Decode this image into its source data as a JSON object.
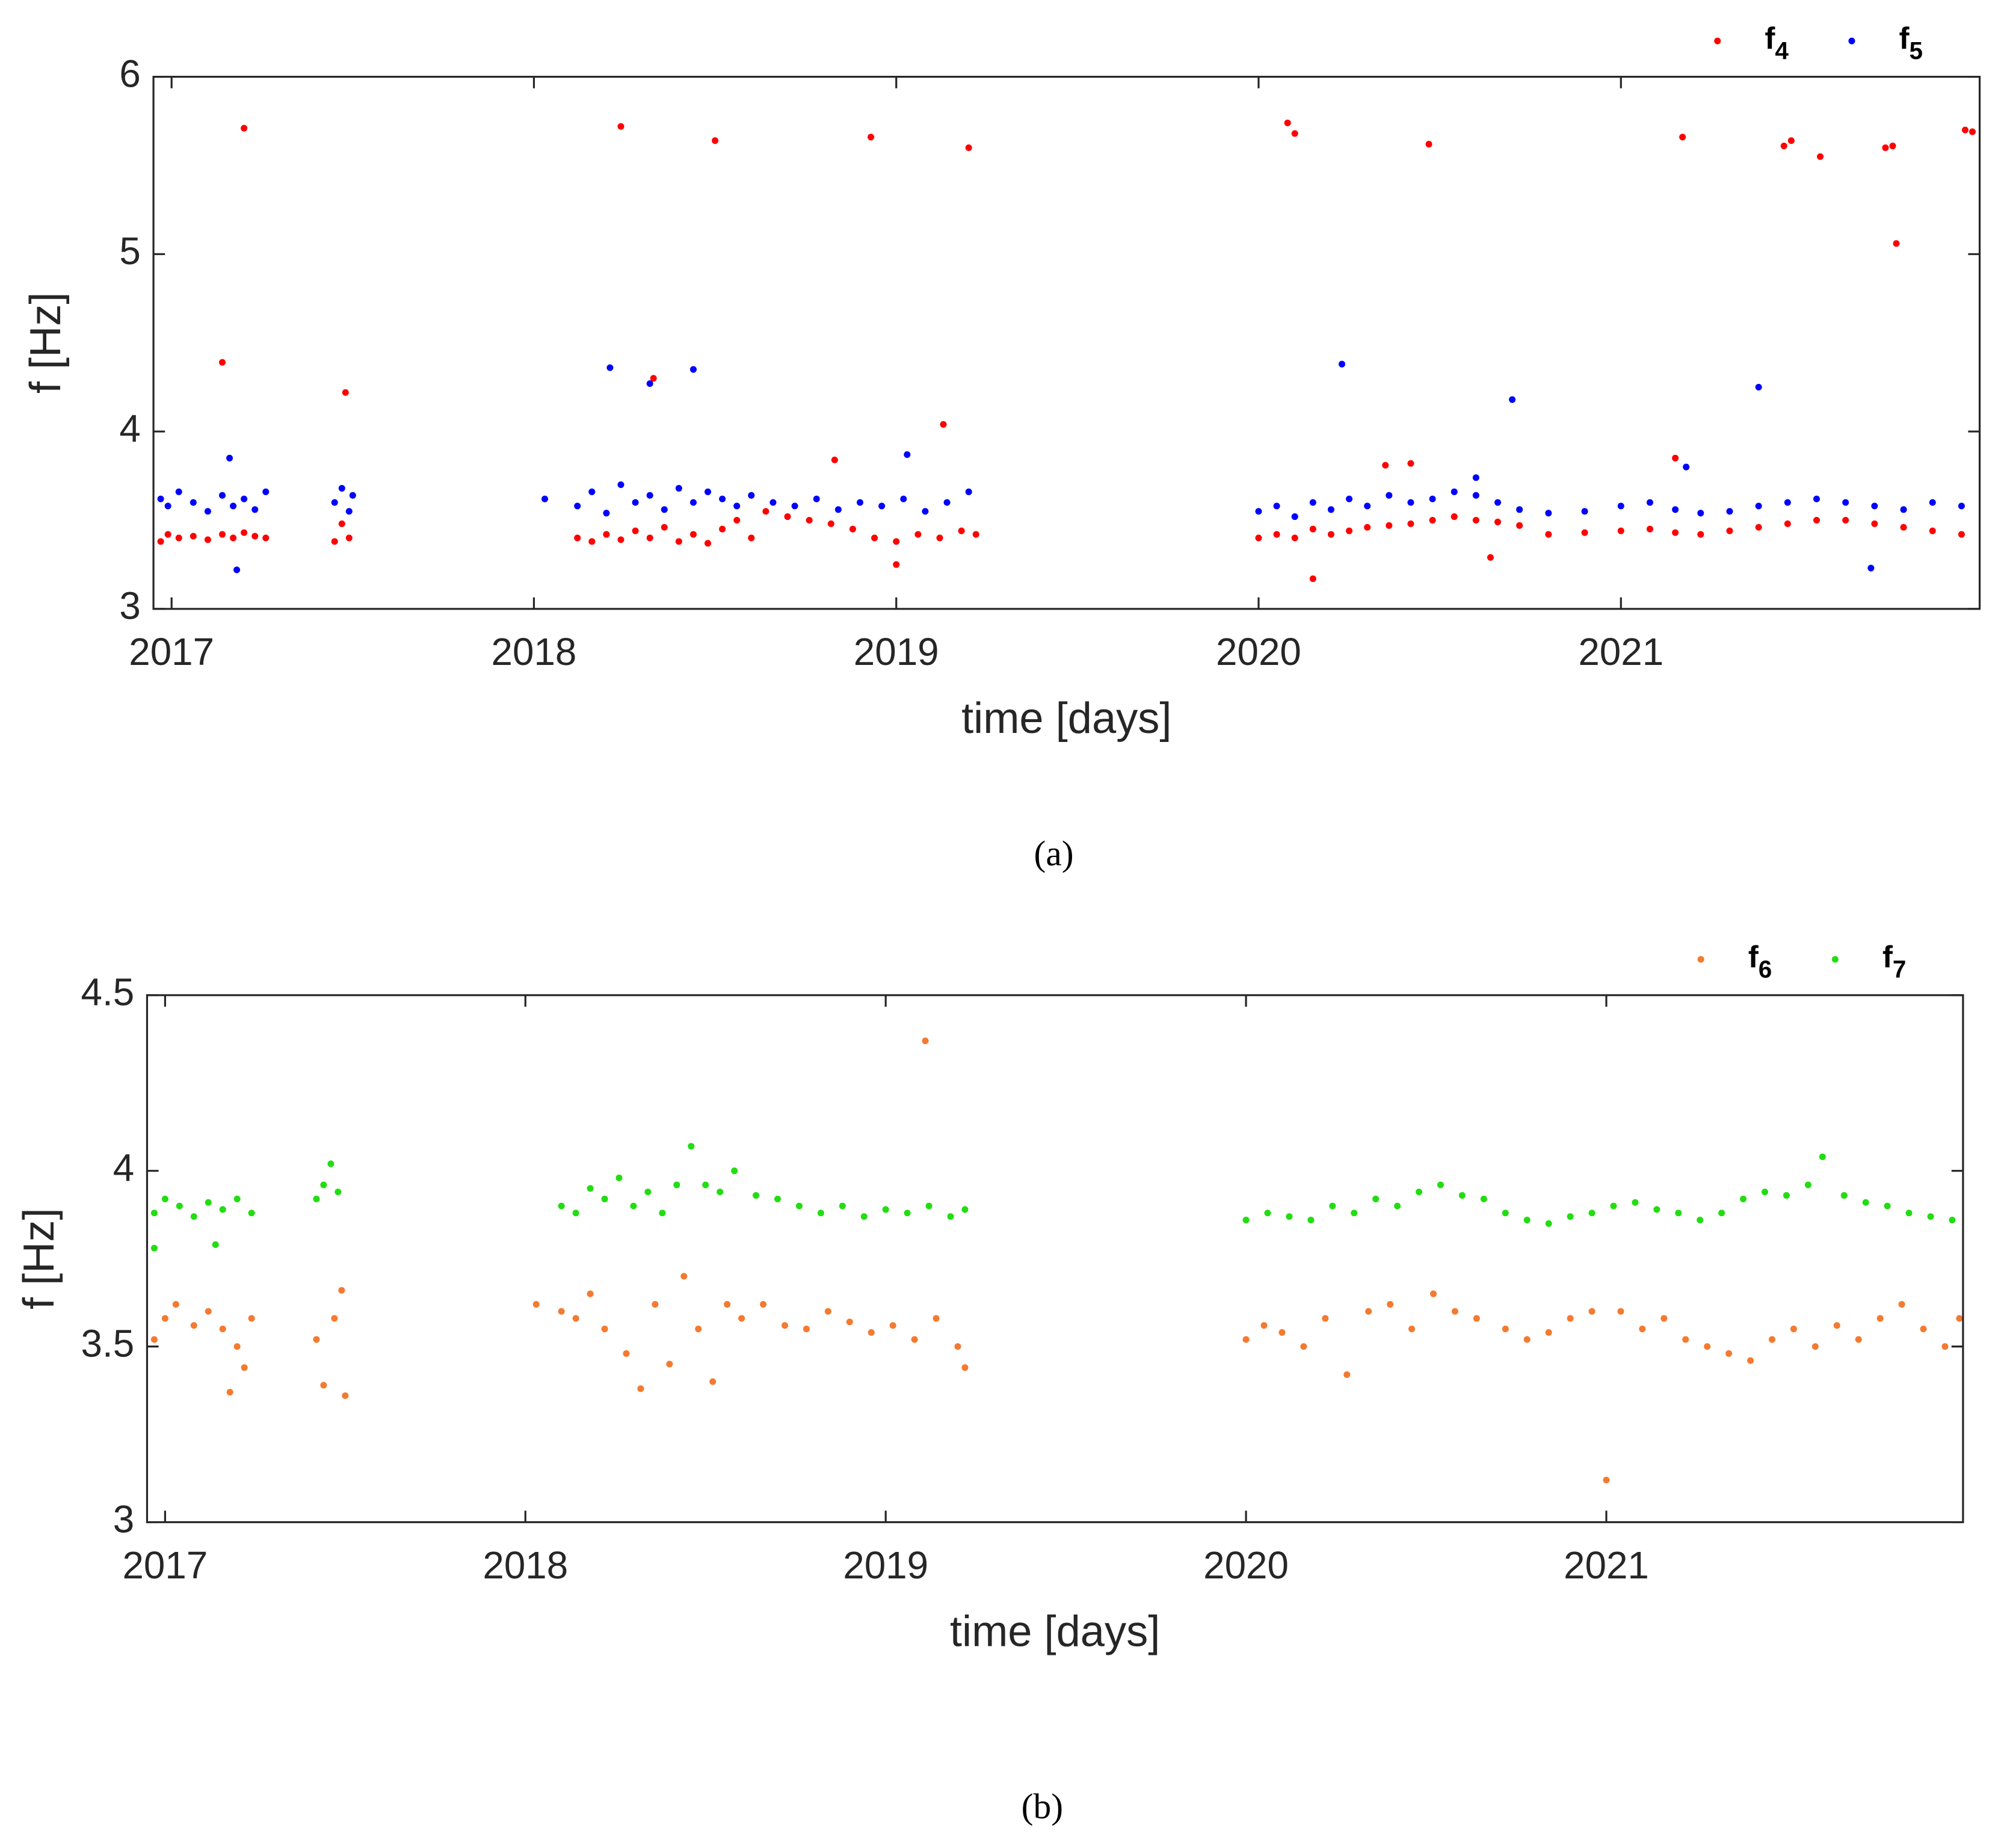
{
  "chart_data": [
    {
      "type": "scatter",
      "xlabel": "time [days]",
      "ylabel": "f [Hz]",
      "caption": "(a)",
      "xlim": [
        2016.95,
        2021.99
      ],
      "xticks": [
        2017,
        2018,
        2019,
        2020,
        2021
      ],
      "ylim": [
        3,
        6
      ],
      "yticks": [
        3,
        4,
        5,
        6
      ],
      "grid": false,
      "legend": "top-right",
      "series": [
        {
          "name": "f4",
          "color": "#ff0000",
          "x": [
            2016.97,
            2016.99,
            2017.02,
            2017.06,
            2017.1,
            2017.14,
            2017.17,
            2017.2,
            2017.23,
            2017.26,
            2017.14,
            2017.2,
            2017.45,
            2017.47,
            2017.49,
            2017.48,
            2018.12,
            2018.16,
            2018.2,
            2018.24,
            2018.28,
            2018.32,
            2018.36,
            2018.4,
            2018.44,
            2018.48,
            2018.52,
            2018.56,
            2018.6,
            2018.64,
            2018.7,
            2018.76,
            2018.82,
            2018.88,
            2018.94,
            2019.0,
            2019.06,
            2019.12,
            2019.18,
            2019.22,
            2018.24,
            2018.33,
            2018.5,
            2018.83,
            2018.93,
            2019.0,
            2019.13,
            2019.2,
            2020.0,
            2020.05,
            2020.1,
            2020.15,
            2020.2,
            2020.25,
            2020.3,
            2020.36,
            2020.42,
            2020.48,
            2020.54,
            2020.6,
            2020.66,
            2020.72,
            2020.8,
            2020.9,
            2021.0,
            2021.08,
            2021.15,
            2021.22,
            2021.3,
            2021.38,
            2021.46,
            2021.54,
            2021.62,
            2021.7,
            2021.78,
            2021.86,
            2021.94,
            2020.08,
            2020.1,
            2020.15,
            2020.35,
            2020.42,
            2020.47,
            2020.64,
            2021.15,
            2021.17,
            2021.45,
            2021.47,
            2021.55,
            2021.73,
            2021.75,
            2021.76,
            2021.95,
            2021.97
          ],
          "values": [
            3.38,
            3.42,
            3.4,
            3.41,
            3.39,
            3.42,
            3.4,
            3.43,
            3.41,
            3.4,
            4.39,
            5.71,
            3.38,
            3.48,
            3.4,
            4.22,
            3.4,
            3.38,
            3.42,
            3.39,
            3.44,
            3.4,
            3.46,
            3.38,
            3.42,
            3.37,
            3.45,
            3.5,
            3.4,
            3.55,
            3.52,
            3.5,
            3.48,
            3.45,
            3.4,
            3.38,
            3.42,
            3.4,
            3.44,
            3.42,
            5.72,
            4.3,
            5.64,
            3.84,
            5.66,
            3.25,
            4.04,
            5.6,
            3.4,
            3.42,
            3.4,
            3.45,
            3.42,
            3.44,
            3.46,
            3.47,
            3.48,
            3.5,
            3.52,
            3.5,
            3.49,
            3.47,
            3.42,
            3.43,
            3.44,
            3.45,
            3.43,
            3.42,
            3.44,
            3.46,
            3.48,
            3.5,
            3.5,
            3.48,
            3.46,
            3.44,
            3.42,
            5.74,
            5.68,
            3.17,
            3.81,
            3.82,
            5.62,
            3.29,
            3.85,
            5.66,
            5.61,
            5.64,
            5.55,
            5.6,
            5.61,
            5.06,
            5.7,
            5.69
          ]
        },
        {
          "name": "f5",
          "color": "#0000ff",
          "x": [
            2016.97,
            2016.99,
            2017.02,
            2017.06,
            2017.1,
            2017.14,
            2017.17,
            2017.2,
            2017.23,
            2017.26,
            2017.18,
            2017.16,
            2017.45,
            2017.47,
            2017.49,
            2017.5,
            2018.03,
            2018.12,
            2018.16,
            2018.2,
            2018.24,
            2018.28,
            2018.32,
            2018.36,
            2018.4,
            2018.44,
            2018.48,
            2018.52,
            2018.56,
            2018.6,
            2018.66,
            2018.72,
            2018.78,
            2018.84,
            2018.9,
            2018.96,
            2019.02,
            2019.08,
            2019.14,
            2019.2,
            2018.21,
            2018.32,
            2018.44,
            2019.03,
            2020.0,
            2020.05,
            2020.1,
            2020.15,
            2020.2,
            2020.25,
            2020.3,
            2020.36,
            2020.42,
            2020.48,
            2020.54,
            2020.6,
            2020.66,
            2020.72,
            2020.8,
            2020.9,
            2021.0,
            2021.08,
            2021.15,
            2021.22,
            2021.3,
            2021.38,
            2021.46,
            2021.54,
            2021.62,
            2021.7,
            2021.78,
            2021.86,
            2021.94,
            2020.23,
            2020.7,
            2021.38,
            2021.69,
            2020.6,
            2021.18
          ],
          "values": [
            3.62,
            3.58,
            3.66,
            3.6,
            3.55,
            3.64,
            3.58,
            3.62,
            3.56,
            3.66,
            3.22,
            3.85,
            3.6,
            3.68,
            3.55,
            3.64,
            3.62,
            3.58,
            3.66,
            3.54,
            3.7,
            3.6,
            3.64,
            3.56,
            3.68,
            3.6,
            3.66,
            3.62,
            3.58,
            3.64,
            3.6,
            3.58,
            3.62,
            3.56,
            3.6,
            3.58,
            3.62,
            3.55,
            3.6,
            3.66,
            4.36,
            4.27,
            4.35,
            3.87,
            3.55,
            3.58,
            3.52,
            3.6,
            3.56,
            3.62,
            3.58,
            3.64,
            3.6,
            3.62,
            3.66,
            3.64,
            3.6,
            3.56,
            3.54,
            3.55,
            3.58,
            3.6,
            3.56,
            3.54,
            3.55,
            3.58,
            3.6,
            3.62,
            3.6,
            3.58,
            3.56,
            3.6,
            3.58,
            4.38,
            4.18,
            4.25,
            3.23,
            3.74,
            3.8
          ]
        }
      ]
    },
    {
      "type": "scatter",
      "xlabel": "time [days]",
      "ylabel": "f [Hz]",
      "caption": "(b)",
      "xlim": [
        2016.95,
        2021.99
      ],
      "xticks": [
        2017,
        2018,
        2019,
        2020,
        2021
      ],
      "ylim": [
        3,
        4.5
      ],
      "yticks": [
        3,
        3.5,
        4,
        4.5
      ],
      "grid": false,
      "legend": "top-right",
      "series": [
        {
          "name": "f6",
          "color": "#f47a30",
          "x": [
            2016.97,
            2017.0,
            2017.03,
            2017.08,
            2017.12,
            2017.16,
            2017.2,
            2017.24,
            2017.18,
            2017.22,
            2017.42,
            2017.44,
            2017.47,
            2017.49,
            2017.5,
            2018.03,
            2018.1,
            2018.14,
            2018.18,
            2018.22,
            2018.28,
            2018.32,
            2018.36,
            2018.4,
            2018.44,
            2018.48,
            2018.52,
            2018.56,
            2018.6,
            2018.66,
            2018.72,
            2018.78,
            2018.84,
            2018.9,
            2018.96,
            2019.02,
            2019.08,
            2019.14,
            2019.2,
            2019.22,
            2019.11,
            2020.0,
            2020.05,
            2020.1,
            2020.16,
            2020.22,
            2020.28,
            2020.34,
            2020.4,
            2020.46,
            2020.52,
            2020.58,
            2020.64,
            2020.72,
            2020.78,
            2020.84,
            2020.9,
            2020.96,
            2021.0,
            2021.04,
            2021.1,
            2021.16,
            2021.22,
            2021.28,
            2021.34,
            2021.4,
            2021.46,
            2021.52,
            2021.58,
            2021.64,
            2021.7,
            2021.76,
            2021.82,
            2021.88,
            2021.94,
            2021.98
          ],
          "values": [
            3.52,
            3.58,
            3.62,
            3.56,
            3.6,
            3.55,
            3.5,
            3.58,
            3.37,
            3.44,
            3.52,
            3.39,
            3.58,
            3.66,
            3.36,
            3.62,
            3.6,
            3.58,
            3.65,
            3.55,
            3.48,
            3.38,
            3.62,
            3.45,
            3.7,
            3.55,
            3.4,
            3.62,
            3.58,
            3.62,
            3.56,
            3.55,
            3.6,
            3.57,
            3.54,
            3.56,
            3.52,
            3.58,
            3.5,
            3.44,
            4.37,
            3.52,
            3.56,
            3.54,
            3.5,
            3.58,
            3.42,
            3.6,
            3.62,
            3.55,
            3.65,
            3.6,
            3.58,
            3.55,
            3.52,
            3.54,
            3.58,
            3.6,
            3.12,
            3.6,
            3.55,
            3.58,
            3.52,
            3.5,
            3.48,
            3.46,
            3.52,
            3.55,
            3.5,
            3.56,
            3.52,
            3.58,
            3.62,
            3.55,
            3.5,
            3.58
          ]
        },
        {
          "name": "f7",
          "color": "#22dd11",
          "x": [
            2016.97,
            2017.0,
            2017.04,
            2017.08,
            2017.12,
            2017.16,
            2017.2,
            2017.24,
            2016.97,
            2017.14,
            2017.42,
            2017.44,
            2017.46,
            2017.48,
            2018.1,
            2018.14,
            2018.18,
            2018.22,
            2018.26,
            2018.3,
            2018.34,
            2018.38,
            2018.42,
            2018.46,
            2018.5,
            2018.54,
            2018.58,
            2018.64,
            2018.7,
            2018.76,
            2018.82,
            2018.88,
            2018.94,
            2019.0,
            2019.06,
            2019.12,
            2019.18,
            2019.22,
            2020.0,
            2020.06,
            2020.12,
            2020.18,
            2020.24,
            2020.3,
            2020.36,
            2020.42,
            2020.48,
            2020.54,
            2020.6,
            2020.66,
            2020.72,
            2020.78,
            2020.84,
            2020.9,
            2020.96,
            2021.02,
            2021.08,
            2021.14,
            2021.2,
            2021.26,
            2021.32,
            2021.38,
            2021.44,
            2021.5,
            2021.56,
            2021.6,
            2021.66,
            2021.72,
            2021.78,
            2021.84,
            2021.9,
            2021.96
          ],
          "values": [
            3.88,
            3.92,
            3.9,
            3.87,
            3.91,
            3.89,
            3.92,
            3.88,
            3.78,
            3.79,
            3.92,
            3.96,
            4.02,
            3.94,
            3.9,
            3.88,
            3.95,
            3.92,
            3.98,
            3.9,
            3.94,
            3.88,
            3.96,
            4.07,
            3.96,
            3.94,
            4.0,
            3.93,
            3.92,
            3.9,
            3.88,
            3.9,
            3.87,
            3.89,
            3.88,
            3.9,
            3.87,
            3.89,
            3.86,
            3.88,
            3.87,
            3.86,
            3.9,
            3.88,
            3.92,
            3.9,
            3.94,
            3.96,
            3.93,
            3.92,
            3.88,
            3.86,
            3.85,
            3.87,
            3.88,
            3.9,
            3.91,
            3.89,
            3.88,
            3.86,
            3.88,
            3.92,
            3.94,
            3.93,
            3.96,
            4.04,
            3.93,
            3.91,
            3.9,
            3.88,
            3.87,
            3.86
          ]
        }
      ]
    }
  ]
}
